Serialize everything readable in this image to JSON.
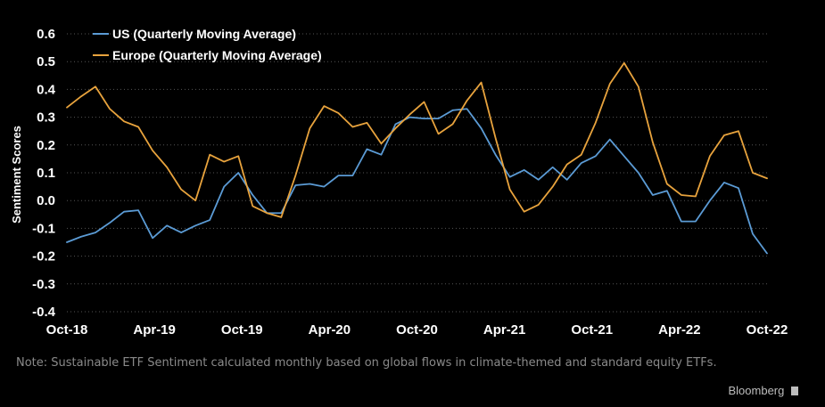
{
  "chart_data": {
    "type": "line",
    "ylabel": "Sentiment Scores",
    "xlabel": "",
    "ylim": [
      -0.4,
      0.6
    ],
    "y_ticks": [
      -0.4,
      -0.3,
      -0.2,
      -0.1,
      0.0,
      0.1,
      0.2,
      0.3,
      0.4,
      0.5,
      0.6
    ],
    "y_tick_labels": [
      "-0.4",
      "-0.3",
      "-0.2",
      "-0.1",
      "0.0",
      "0.1",
      "0.2",
      "0.3",
      "0.4",
      "0.5",
      "0.6"
    ],
    "x_tick_labels": [
      "Oct-18",
      "Apr-19",
      "Oct-19",
      "Apr-20",
      "Oct-20",
      "Apr-21",
      "Oct-21",
      "Apr-22",
      "Oct-22"
    ],
    "x_tick_positions": [
      0,
      6,
      12,
      18,
      24,
      30,
      36,
      42,
      48
    ],
    "x_range": [
      0,
      48
    ],
    "grid": "horizontal dotted",
    "legend_position": "top-left",
    "series": [
      {
        "name": "US (Quarterly Moving Average)",
        "color": "#5b9bd5",
        "values": [
          -0.15,
          -0.13,
          -0.115,
          -0.08,
          -0.04,
          -0.035,
          -0.135,
          -0.09,
          -0.115,
          -0.09,
          -0.07,
          0.05,
          0.1,
          0.02,
          -0.045,
          -0.045,
          0.055,
          0.06,
          0.05,
          0.09,
          0.09,
          0.185,
          0.165,
          0.275,
          0.3,
          0.295,
          0.295,
          0.325,
          0.33,
          0.26,
          0.165,
          0.085,
          0.11,
          0.075,
          0.12,
          0.075,
          0.135,
          0.16,
          0.22,
          0.16,
          0.1,
          0.02,
          0.035,
          -0.075,
          -0.075,
          0.0,
          0.065,
          0.045,
          -0.12,
          -0.19
        ]
      },
      {
        "name": "Europe (Quarterly Moving Average)",
        "color": "#e8a33d",
        "values": [
          0.335,
          0.375,
          0.41,
          0.33,
          0.285,
          0.265,
          0.18,
          0.12,
          0.04,
          0.0,
          0.165,
          0.14,
          0.16,
          -0.02,
          -0.045,
          -0.06,
          0.09,
          0.26,
          0.34,
          0.315,
          0.265,
          0.28,
          0.205,
          0.26,
          0.31,
          0.355,
          0.24,
          0.275,
          0.36,
          0.425,
          0.225,
          0.04,
          -0.04,
          -0.015,
          0.05,
          0.13,
          0.165,
          0.28,
          0.42,
          0.495,
          0.41,
          0.21,
          0.06,
          0.02,
          0.015,
          0.16,
          0.235,
          0.25,
          0.1,
          0.08
        ]
      }
    ]
  },
  "note": "Note: Sustainable ETF Sentiment calculated monthly based on global flows in climate-themed and standard equity ETFs.",
  "brand": "Bloomberg",
  "colors": {
    "background": "#000000",
    "grid": "#555555",
    "text": "#ffffff",
    "note": "#8a8a8a"
  }
}
